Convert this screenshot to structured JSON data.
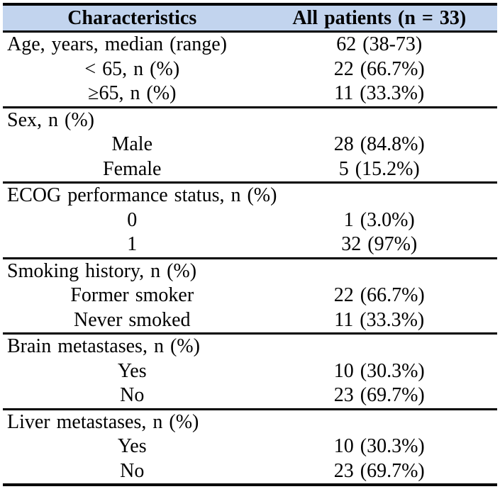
{
  "table": {
    "colors": {
      "header_bg": "#c2d4ee",
      "border": "#000000",
      "text": "#000000"
    },
    "header": {
      "characteristics": "Characteristics",
      "all_patients": "All patients (n = 33)"
    },
    "sections": [
      {
        "rows": [
          {
            "label": "Age, years, median (range)",
            "value": "62 (38-73)",
            "indent": false
          },
          {
            "label": "< 65, n (%)",
            "value": "22 (66.7%)",
            "indent": true
          },
          {
            "label": "≥65, n (%)",
            "value": "11 (33.3%)",
            "indent": true
          }
        ]
      },
      {
        "rows": [
          {
            "label": "Sex, n (%)",
            "value": "",
            "indent": false
          },
          {
            "label": "Male",
            "value": "28 (84.8%)",
            "indent": true
          },
          {
            "label": "Female",
            "value": "5 (15.2%)",
            "indent": true
          }
        ]
      },
      {
        "rows": [
          {
            "label": "ECOG performance status, n (%)",
            "value": "",
            "indent": false
          },
          {
            "label": "0",
            "value": "1 (3.0%)",
            "indent": true
          },
          {
            "label": "1",
            "value": "32 (97%)",
            "indent": true
          }
        ]
      },
      {
        "rows": [
          {
            "label": "Smoking history, n (%)",
            "value": "",
            "indent": false
          },
          {
            "label": "Former smoker",
            "value": "22 (66.7%)",
            "indent": true
          },
          {
            "label": "Never smoked",
            "value": "11 (33.3%)",
            "indent": true
          }
        ]
      },
      {
        "rows": [
          {
            "label": "Brain metastases, n (%)",
            "value": "",
            "indent": false
          },
          {
            "label": "Yes",
            "value": "10 (30.3%)",
            "indent": true
          },
          {
            "label": "No",
            "value": "23 (69.7%)",
            "indent": true
          }
        ]
      },
      {
        "rows": [
          {
            "label": "Liver metastases, n (%)",
            "value": "",
            "indent": false
          },
          {
            "label": "Yes",
            "value": "10 (30.3%)",
            "indent": true
          },
          {
            "label": "No",
            "value": "23 (69.7%)",
            "indent": true
          }
        ]
      }
    ]
  }
}
